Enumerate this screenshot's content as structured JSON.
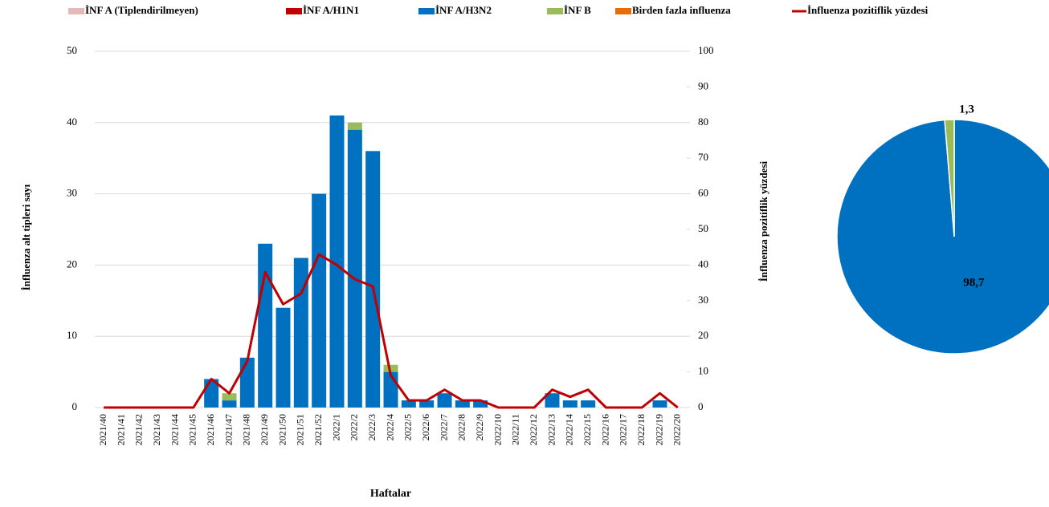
{
  "chart_data": [
    {
      "type": "bar",
      "x_label": "Haftalar",
      "y_label": "İnfluenza alt tipleri sayı",
      "y2_label": "İnfluenza pozitiflik yüzdesi",
      "categories": [
        "2021/40",
        "2021/41",
        "2021/42",
        "2021/43",
        "2021/44",
        "2021/45",
        "2021/46",
        "2021/47",
        "2021/48",
        "2021/49",
        "2021/50",
        "2021/51",
        "2021/52",
        "2022/1",
        "2022/2",
        "2022/3",
        "2022/4",
        "2022/5",
        "2022/6",
        "2022/7",
        "2022/8",
        "2022/9",
        "2022/10",
        "2022/11",
        "2022/12",
        "2022/13",
        "2022/14",
        "2022/15",
        "2022/16",
        "2022/17",
        "2022/18",
        "2022/19",
        "2022/20"
      ],
      "series": [
        {
          "name": "İNF A (Tiplendirilmeyen)",
          "color": "#e6b9b8",
          "values": [
            0,
            0,
            0,
            0,
            0,
            0,
            0,
            0,
            0,
            0,
            0,
            0,
            0,
            0,
            0,
            0,
            0,
            0,
            0,
            0,
            0,
            0,
            0,
            0,
            0,
            0,
            0,
            0,
            0,
            0,
            0,
            0,
            0
          ]
        },
        {
          "name": "İNF A/H1N1",
          "color": "#c00000",
          "values": [
            0,
            0,
            0,
            0,
            0,
            0,
            0,
            0,
            0,
            0,
            0,
            0,
            0,
            0,
            0,
            0,
            0,
            0,
            0,
            0,
            0,
            0,
            0,
            0,
            0,
            0,
            0,
            0,
            0,
            0,
            0,
            0,
            0
          ]
        },
        {
          "name": "İNF A/H3N2",
          "color": "#0070c0",
          "values": [
            0,
            0,
            0,
            0,
            0,
            0,
            4,
            1,
            7,
            23,
            14,
            21,
            30,
            41,
            39,
            36,
            5,
            1,
            1,
            2,
            1,
            1,
            0,
            0,
            0,
            2,
            1,
            1,
            0,
            0,
            0,
            1,
            0
          ]
        },
        {
          "name": "İNF B",
          "color": "#9bbb59",
          "values": [
            0,
            0,
            0,
            0,
            0,
            0,
            0,
            1,
            0,
            0,
            0,
            0,
            0,
            0,
            1,
            0,
            1,
            0,
            0,
            0,
            0,
            0,
            0,
            0,
            0,
            0,
            0,
            0,
            0,
            0,
            0,
            0,
            0
          ]
        },
        {
          "name": "Birden fazla influenza",
          "color": "#e46c0a",
          "values": [
            0,
            0,
            0,
            0,
            0,
            0,
            0,
            0,
            0,
            0,
            0,
            0,
            0,
            0,
            0,
            0,
            0,
            0,
            0,
            0,
            0,
            0,
            0,
            0,
            0,
            0,
            0,
            0,
            0,
            0,
            0,
            0,
            0
          ]
        },
        {
          "name": "İnfluenza pozitiflik yüzdesi",
          "color": "#c00000",
          "type": "line",
          "axis": "y2",
          "values": [
            0,
            0,
            0,
            0,
            0,
            0,
            8,
            4,
            13,
            38,
            29,
            32,
            43,
            40,
            36,
            34,
            9,
            2,
            2,
            5,
            2,
            2,
            0,
            0,
            0,
            5,
            3,
            5,
            0,
            0,
            0,
            4,
            0
          ]
        }
      ],
      "ylim": [
        0,
        50
      ],
      "yticks": [
        0,
        10,
        20,
        30,
        40,
        50
      ],
      "y2lim": [
        0,
        100
      ],
      "y2ticks": [
        0,
        10,
        20,
        30,
        40,
        50,
        60,
        70,
        80,
        90,
        100
      ],
      "grid": true,
      "legend": "top",
      "stacked": true
    },
    {
      "type": "pie",
      "values": [
        98.7,
        1.3
      ],
      "value_labels": [
        "98,7",
        "1,3"
      ],
      "colors": [
        "#0070c0",
        "#9bbb59"
      ]
    }
  ]
}
